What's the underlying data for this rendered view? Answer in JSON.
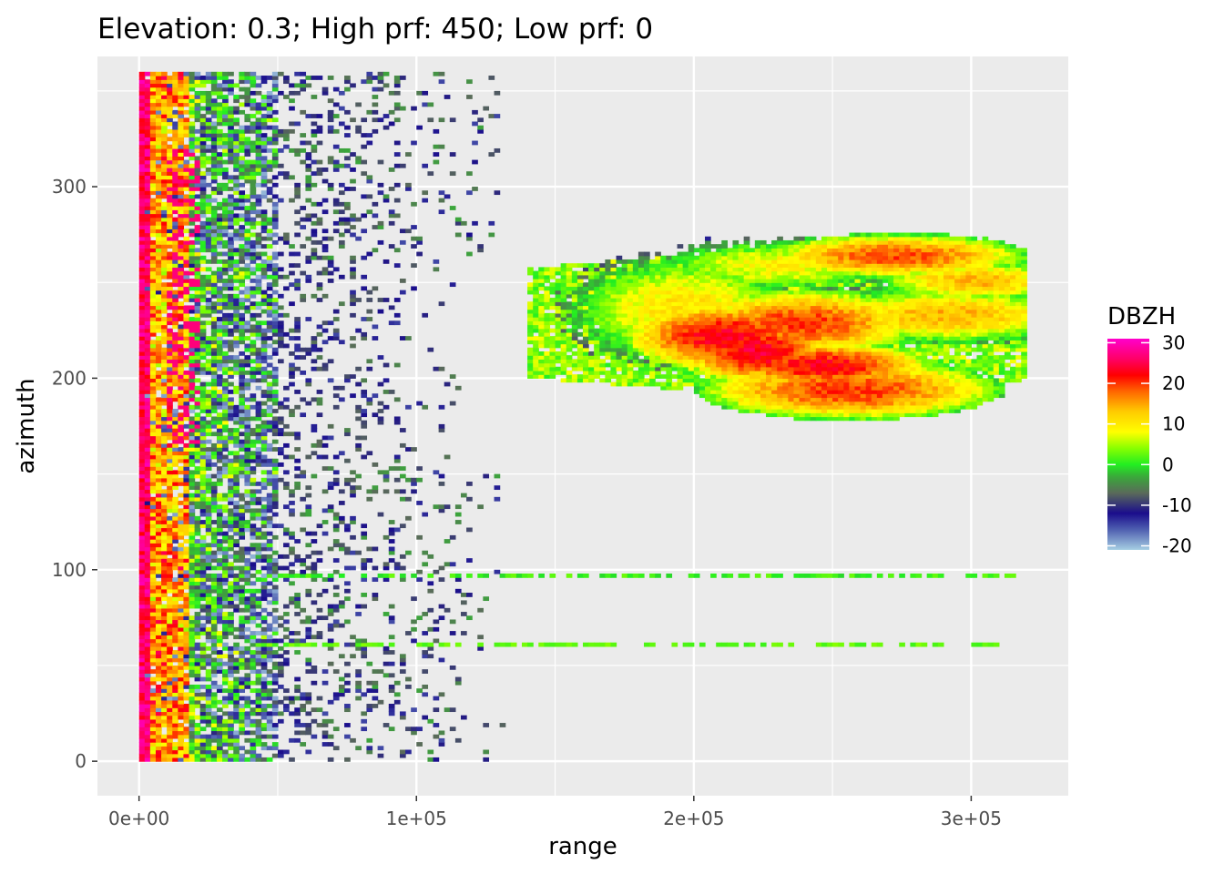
{
  "chart_data": {
    "type": "heatmap",
    "title": "Elevation: 0.3; High prf: 450; Low prf: 0",
    "xlabel": "range",
    "ylabel": "azimuth",
    "xlim": [
      -15000,
      335000
    ],
    "ylim": [
      -18,
      368
    ],
    "x_ticks": [
      {
        "value": 0,
        "label": "0e+00"
      },
      {
        "value": 100000,
        "label": "1e+05"
      },
      {
        "value": 200000,
        "label": "2e+05"
      },
      {
        "value": 300000,
        "label": "3e+05"
      }
    ],
    "y_ticks": [
      {
        "value": 0,
        "label": "0"
      },
      {
        "value": 100,
        "label": "100"
      },
      {
        "value": 200,
        "label": "200"
      },
      {
        "value": 300,
        "label": "300"
      }
    ],
    "x_minor": [
      50000,
      150000,
      250000
    ],
    "y_minor": [
      50,
      150,
      250,
      350
    ],
    "panel_background": "#ebebeb",
    "grid": true,
    "legend": {
      "title": "DBZH",
      "position": "right",
      "range": [
        -21,
        31
      ],
      "ticks": [
        30,
        20,
        10,
        0,
        -10,
        -20
      ],
      "tick_labels": [
        "30",
        "20",
        "10",
        "0",
        "-10",
        "-20"
      ],
      "color_stops": [
        {
          "value": -21,
          "color": "#a6cee3"
        },
        {
          "value": -16,
          "color": "#4f5fb0"
        },
        {
          "value": -12,
          "color": "#1a0d8c"
        },
        {
          "value": -7,
          "color": "#5a6a5a"
        },
        {
          "value": -3,
          "color": "#3aa83a"
        },
        {
          "value": 0,
          "color": "#22ee22"
        },
        {
          "value": 4,
          "color": "#88ff00"
        },
        {
          "value": 8,
          "color": "#ffff00"
        },
        {
          "value": 13,
          "color": "#ffcc00"
        },
        {
          "value": 18,
          "color": "#ff6600"
        },
        {
          "value": 22,
          "color": "#ff0000"
        },
        {
          "value": 26,
          "color": "#ff0066"
        },
        {
          "value": 31,
          "color": "#ff00cc"
        }
      ]
    },
    "data_extent": {
      "range": [
        0,
        320000
      ],
      "azimuth": [
        0,
        360
      ]
    }
  }
}
